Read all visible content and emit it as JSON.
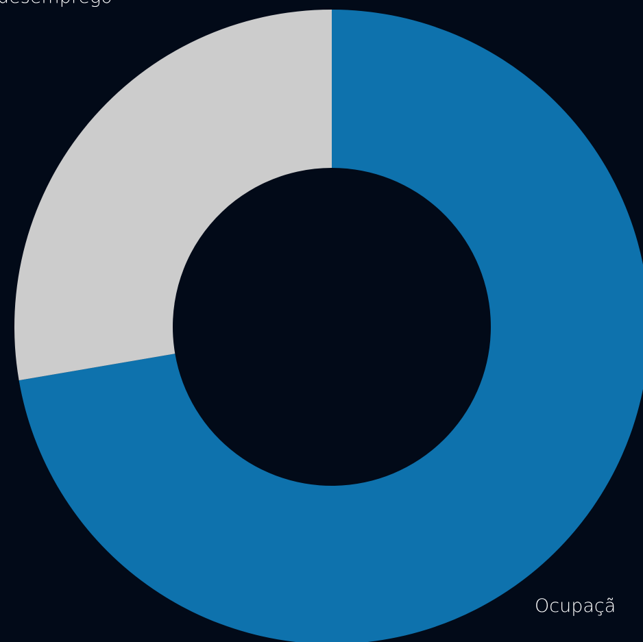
{
  "chart_data": {
    "type": "pie",
    "donut": true,
    "categories": [
      "Ocupaçã",
      "desemprego"
    ],
    "values": [
      72.3,
      27.7
    ],
    "colors": [
      "#0e72ad",
      "#cccccc"
    ]
  }
}
